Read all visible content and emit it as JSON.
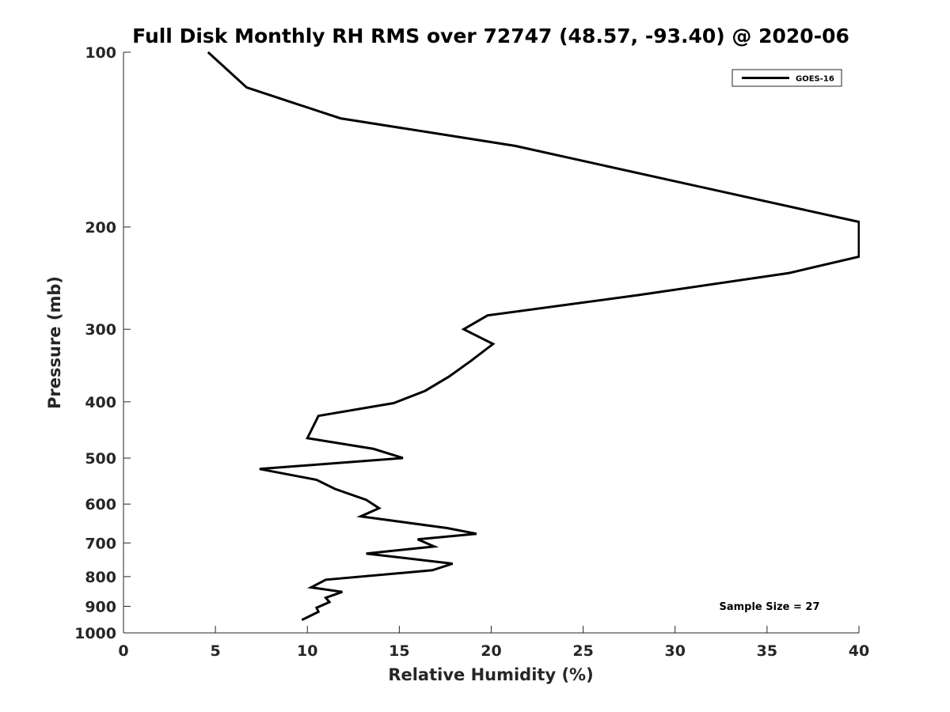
{
  "chart_data": {
    "type": "line",
    "title": "Full Disk Monthly RH RMS over 72747 (48.57, -93.40) @ 2020-06",
    "xlabel": "Relative Humidity (%)",
    "ylabel": "Pressure (mb)",
    "xlim": [
      0,
      40
    ],
    "ylim": [
      100,
      1000
    ],
    "y_scale": "log",
    "y_reversed": true,
    "grid": false,
    "legend_position": "top-right",
    "x_ticks": [
      0,
      5,
      10,
      15,
      20,
      25,
      30,
      35,
      40
    ],
    "y_ticks": [
      100,
      200,
      300,
      400,
      500,
      600,
      700,
      800,
      900,
      1000
    ],
    "annotation": "Sample Size = 27",
    "series": [
      {
        "name": "GOES-16",
        "color": "#000000",
        "x": [
          4.6,
          6.7,
          11.8,
          21.3,
          40.0,
          40.0,
          36.2,
          28.0,
          19.8,
          18.5,
          20.1,
          18.9,
          17.7,
          16.4,
          14.7,
          10.6,
          10.0,
          13.6,
          15.2,
          7.4,
          10.5,
          11.5,
          13.2,
          13.9,
          12.9,
          17.6,
          19.2,
          16.0,
          16.9,
          13.2,
          17.9,
          16.8,
          11.0,
          10.2,
          11.9,
          11.0,
          11.2,
          10.5,
          10.6,
          9.7
        ],
        "y": [
          100,
          115,
          130,
          145,
          196,
          225,
          240,
          262,
          284,
          300,
          318,
          340,
          362,
          383,
          402,
          423,
          462,
          482,
          500,
          522,
          545,
          565,
          590,
          610,
          630,
          660,
          675,
          690,
          710,
          730,
          760,
          780,
          810,
          835,
          850,
          870,
          885,
          905,
          920,
          950
        ]
      }
    ]
  }
}
